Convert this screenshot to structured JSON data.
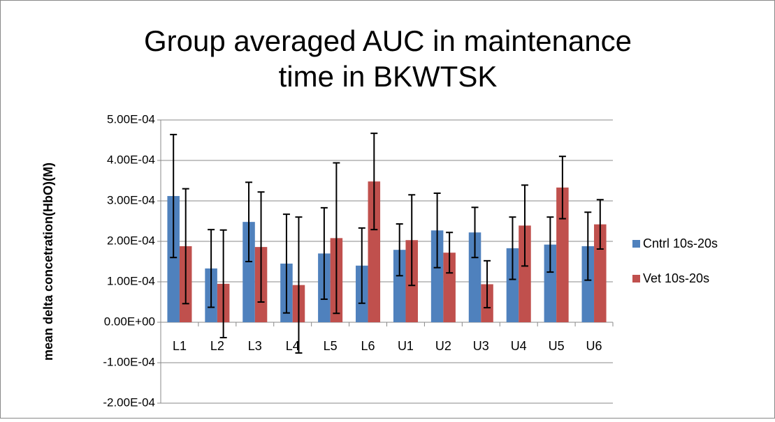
{
  "chart_data": {
    "type": "bar",
    "title": "Group averaged AUC in maintenance time in BKWTSK",
    "y_label": "mean delta concetration(HbO)(M)",
    "categories": [
      "L1",
      "L2",
      "L3",
      "L4",
      "L5",
      "L6",
      "U1",
      "U2",
      "U3",
      "U4",
      "U5",
      "U6"
    ],
    "series": [
      {
        "name": "Cntrl 10s-20s",
        "color": "#4f81bd",
        "values": [
          0.000312,
          0.000133,
          0.000248,
          0.000145,
          0.00017,
          0.00014,
          0.000179,
          0.000227,
          0.000222,
          0.000183,
          0.000192,
          0.000188
        ],
        "errors": [
          0.000152,
          9.6e-05,
          9.8e-05,
          0.000122,
          0.000113,
          9.3e-05,
          6.4e-05,
          9.2e-05,
          6.2e-05,
          7.7e-05,
          6.8e-05,
          8.4e-05
        ]
      },
      {
        "name": "Vet 10s-20s",
        "color": "#c0504d",
        "values": [
          0.000188,
          9.5e-05,
          0.000186,
          9.2e-05,
          0.000208,
          0.000348,
          0.000203,
          0.000172,
          9.4e-05,
          0.000239,
          0.000333,
          0.000242
        ],
        "errors": [
          0.000142,
          0.000133,
          0.000136,
          0.000168,
          0.000186,
          0.000119,
          0.000112,
          5e-05,
          5.8e-05,
          0.0001,
          7.7e-05,
          6.1e-05
        ]
      }
    ],
    "ylim": [
      -0.0002,
      0.0005
    ],
    "yticks": [
      {
        "value": -0.0002,
        "label": "-2.00E-04"
      },
      {
        "value": -0.0001,
        "label": "-1.00E-04"
      },
      {
        "value": 0,
        "label": "0.00E+00"
      },
      {
        "value": 0.0001,
        "label": "1.00E-04"
      },
      {
        "value": 0.0002,
        "label": "2.00E-04"
      },
      {
        "value": 0.0003,
        "label": "3.00E-04"
      },
      {
        "value": 0.0004,
        "label": "4.00E-04"
      },
      {
        "value": 0.0005,
        "label": "5.00E-04"
      }
    ],
    "grid": true,
    "legend": "right"
  }
}
